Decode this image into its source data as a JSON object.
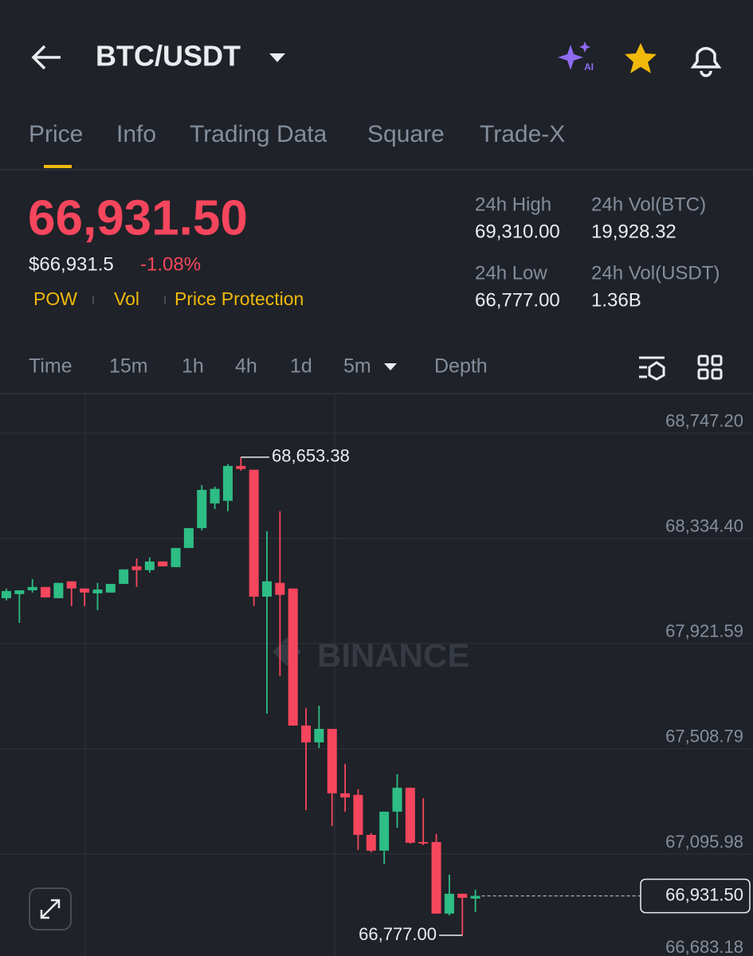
{
  "header": {
    "pair": "BTC/USDT"
  },
  "tabs": [
    "Price",
    "Info",
    "Trading Data",
    "Square",
    "Trade-X"
  ],
  "ticker": {
    "price": "66,931.50",
    "usd_price": "$66,931.5",
    "change": "-1.08%",
    "tags": [
      "POW",
      "Vol",
      "Price Protection"
    ],
    "stats": [
      {
        "label": "24h High",
        "value": "69,310.00"
      },
      {
        "label": "24h Vol(BTC)",
        "value": "19,928.32"
      },
      {
        "label": "24h Low",
        "value": "66,777.00"
      },
      {
        "label": "24h Vol(USDT)",
        "value": "1.36B"
      }
    ]
  },
  "intervals": [
    "Time",
    "15m",
    "1h",
    "4h",
    "1d",
    "5m",
    "Depth"
  ],
  "chart": {
    "type": "candlestick",
    "watermark": "BINANCE",
    "ylim": [
      66680,
      68900
    ],
    "yticks": [
      {
        "value": 68747.2,
        "label": "68,747.20"
      },
      {
        "value": 68334.4,
        "label": "68,334.40"
      },
      {
        "value": 67921.59,
        "label": "67,921.59"
      },
      {
        "value": 67508.79,
        "label": "67,508.79"
      },
      {
        "value": 67095.98,
        "label": "67,095.98"
      },
      {
        "value": 66683.18,
        "label": "66,683.18"
      }
    ],
    "open": [
      68100,
      68116,
      68131,
      68144,
      68100,
      68166,
      68138,
      68119,
      68122,
      68156,
      68225,
      68210,
      68244,
      68222,
      68297,
      68375,
      68472,
      68482,
      68619,
      68604,
      68106,
      68160,
      68138,
      67600,
      67534,
      67587,
      67334,
      67328,
      67171,
      67109,
      67262,
      67356,
      67143,
      67143,
      66862,
      66940,
      66921
    ],
    "high": [
      68138,
      68131,
      68175,
      68144,
      68160,
      68166,
      68138,
      68160,
      68156,
      68213,
      68256,
      68260,
      68244,
      68297,
      68375,
      68544,
      68538,
      68626,
      68653.38,
      68604,
      68363,
      68441,
      68138,
      67669,
      67678,
      67587,
      67450,
      67350,
      67178,
      67262,
      67409,
      67356,
      67315,
      67175,
      67015,
      66940,
      66956
    ],
    "low": [
      68091,
      68003,
      68122,
      68103,
      68100,
      68069,
      68069,
      68053,
      68122,
      68156,
      68144,
      68200,
      68225,
      68222,
      68297,
      68366,
      68450,
      68441,
      68600,
      68069,
      67647,
      67794,
      67600,
      67268,
      67512,
      67206,
      67262,
      67112,
      67103,
      67056,
      67199,
      67137,
      67131,
      66862,
      66855,
      66777,
      66868
    ],
    "close": [
      68128,
      68131,
      68144,
      68103,
      68160,
      68138,
      68122,
      68134,
      68156,
      68213,
      68210,
      68244,
      68225,
      68297,
      68375,
      68525,
      68529,
      68619,
      68607,
      68106,
      68166,
      68113,
      67600,
      67534,
      67587,
      67334,
      67318,
      67171,
      67109,
      67262,
      67356,
      67140,
      67137,
      66862,
      66940,
      66924,
      66931.5
    ],
    "max_label": {
      "value": 68653.38,
      "label": "68,653.38"
    },
    "min_label": {
      "value": 66777,
      "label": "66,777.00"
    },
    "last": {
      "value": 66931.5,
      "label": "66,931.50"
    }
  }
}
